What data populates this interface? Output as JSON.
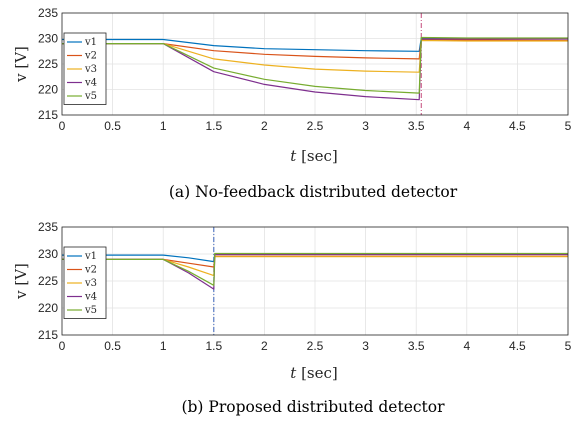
{
  "chart_data": [
    {
      "type": "line",
      "caption": "(a) No-feedback distributed detector",
      "xlabel_var": "t",
      "xlabel_unit": "[sec]",
      "ylabel": "v [V]",
      "xlim": [
        0,
        5
      ],
      "ylim": [
        215,
        235
      ],
      "xticks": [
        "0",
        "0.5",
        "1",
        "1.5",
        "2",
        "2.5",
        "3",
        "3.5",
        "4",
        "4.5",
        "5"
      ],
      "yticks": [
        "215",
        "220",
        "225",
        "230",
        "235"
      ],
      "grid": true,
      "legend_position": "left",
      "event_line": {
        "x": 3.55,
        "color": "#c44a7a"
      },
      "series": [
        {
          "name": "v1",
          "color": "#0072BD",
          "x": [
            0,
            1,
            1.5,
            2,
            2.5,
            3,
            3.53,
            3.55,
            4,
            5
          ],
          "values": [
            229.8,
            229.8,
            228.6,
            228.0,
            227.8,
            227.6,
            227.5,
            230.1,
            230.0,
            230.0
          ]
        },
        {
          "name": "v2",
          "color": "#D95319",
          "x": [
            0,
            1,
            1.5,
            2,
            2.5,
            3,
            3.53,
            3.55,
            4,
            5
          ],
          "values": [
            229.0,
            229.0,
            227.6,
            226.9,
            226.5,
            226.2,
            226.0,
            229.8,
            229.7,
            229.6
          ]
        },
        {
          "name": "v3",
          "color": "#EDB120",
          "x": [
            0,
            1,
            1.5,
            2,
            2.5,
            3,
            3.53,
            3.55,
            4,
            5
          ],
          "values": [
            229.0,
            229.0,
            226.0,
            224.8,
            224.0,
            223.6,
            223.4,
            229.6,
            229.5,
            229.5
          ]
        },
        {
          "name": "v4",
          "color": "#7E2F8E",
          "x": [
            0,
            1,
            1.5,
            2,
            2.5,
            3,
            3.53,
            3.55,
            4,
            5
          ],
          "values": [
            229.0,
            229.0,
            223.5,
            221.0,
            219.5,
            218.6,
            218.0,
            229.9,
            229.9,
            229.9
          ]
        },
        {
          "name": "v5",
          "color": "#77AC30",
          "x": [
            0,
            1,
            1.5,
            2,
            2.5,
            3,
            3.53,
            3.55,
            4,
            5
          ],
          "values": [
            229.0,
            229.0,
            224.2,
            222.0,
            220.6,
            219.8,
            219.3,
            230.2,
            230.1,
            230.1
          ]
        }
      ]
    },
    {
      "type": "line",
      "caption": "(b) Proposed distributed detector",
      "xlabel_var": "t",
      "xlabel_unit": "[sec]",
      "ylabel": "v [V]",
      "xlim": [
        0,
        5
      ],
      "ylim": [
        215,
        235
      ],
      "xticks": [
        "0",
        "0.5",
        "1",
        "1.5",
        "2",
        "2.5",
        "3",
        "3.5",
        "4",
        "4.5",
        "5"
      ],
      "yticks": [
        "215",
        "220",
        "225",
        "230",
        "235"
      ],
      "grid": true,
      "legend_position": "left",
      "event_line": {
        "x": 1.5,
        "color": "#3a62b8"
      },
      "series": [
        {
          "name": "v1",
          "color": "#0072BD",
          "x": [
            0,
            1,
            1.25,
            1.5,
            1.51,
            5
          ],
          "values": [
            229.8,
            229.8,
            229.3,
            228.6,
            230.0,
            230.0
          ]
        },
        {
          "name": "v2",
          "color": "#D95319",
          "x": [
            0,
            1,
            1.25,
            1.5,
            1.51,
            5
          ],
          "values": [
            229.0,
            229.0,
            228.3,
            227.6,
            229.6,
            229.6
          ]
        },
        {
          "name": "v3",
          "color": "#EDB120",
          "x": [
            0,
            1,
            1.25,
            1.5,
            1.51,
            5
          ],
          "values": [
            229.0,
            229.0,
            227.6,
            226.0,
            229.5,
            229.5
          ]
        },
        {
          "name": "v4",
          "color": "#7E2F8E",
          "x": [
            0,
            1,
            1.25,
            1.5,
            1.51,
            5
          ],
          "values": [
            229.0,
            229.0,
            226.5,
            223.5,
            229.9,
            229.9
          ]
        },
        {
          "name": "v5",
          "color": "#77AC30",
          "x": [
            0,
            1,
            1.25,
            1.5,
            1.51,
            5
          ],
          "values": [
            229.0,
            229.0,
            226.8,
            224.2,
            230.1,
            230.1
          ]
        }
      ]
    }
  ]
}
